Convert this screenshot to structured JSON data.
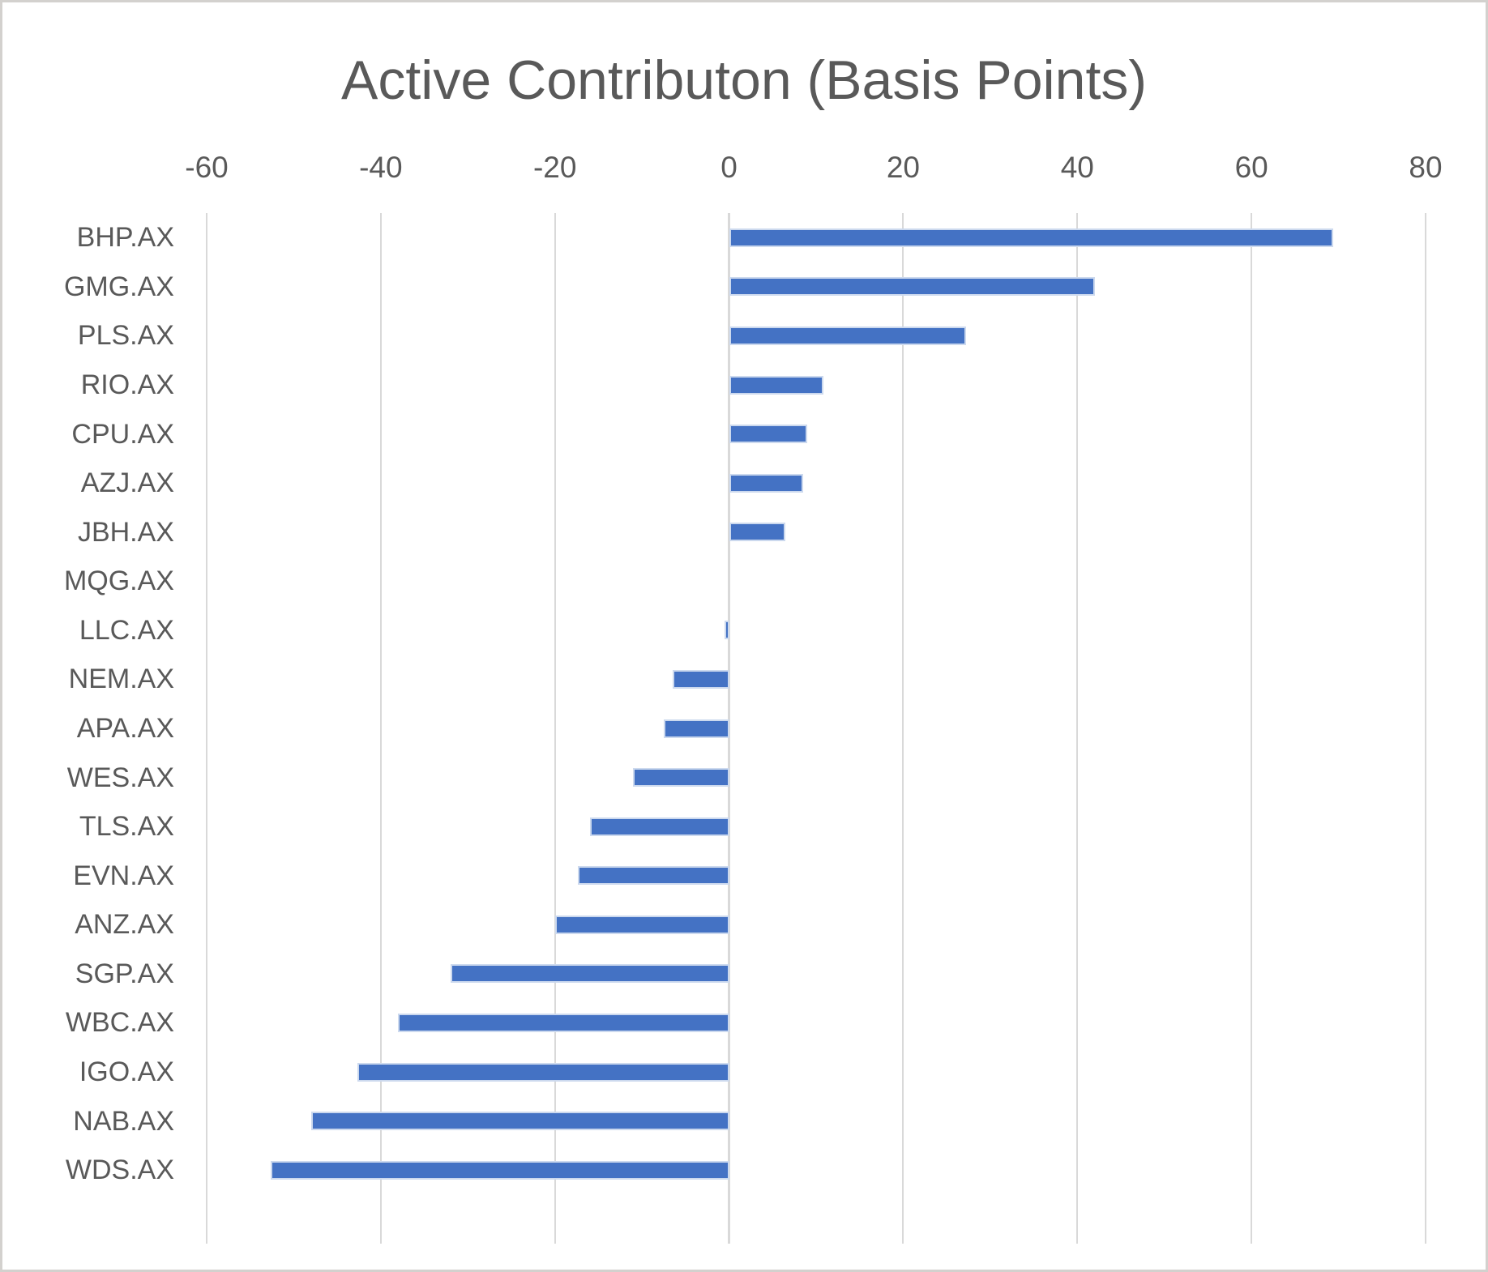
{
  "title": "Active Contributon (Basis Points)",
  "chart_data": {
    "type": "bar",
    "orientation": "horizontal",
    "title": "Active Contributon (Basis Points)",
    "xlabel": "",
    "ylabel": "",
    "xlim": [
      -60,
      80
    ],
    "x_ticks": [
      -60,
      -40,
      -20,
      0,
      20,
      40,
      60,
      80
    ],
    "grid": true,
    "legend": false,
    "categories": [
      "BHP.AX",
      "GMG.AX",
      "PLS.AX",
      "RIO.AX",
      "CPU.AX",
      "AZJ.AX",
      "JBH.AX",
      "MQG.AX",
      "LLC.AX",
      "NEM.AX",
      "APA.AX",
      "WES.AX",
      "TLS.AX",
      "EVN.AX",
      "ANZ.AX",
      "SGP.AX",
      "WBC.AX",
      "IGO.AX",
      "NAB.AX",
      "WDS.AX"
    ],
    "values": [
      69.4,
      42.0,
      27.2,
      10.8,
      9.0,
      8.5,
      6.5,
      0.0,
      -0.5,
      -6.5,
      -7.5,
      -11.0,
      -16.0,
      -17.4,
      -20.0,
      -32.0,
      -38.0,
      -42.7,
      -48.0,
      -52.6
    ]
  },
  "colors": {
    "bar": "#4472C4",
    "bar_edge": "#CCD9EE",
    "gridline": "#D9D9D9",
    "text": "#595959",
    "frame_border": "#D3D1CE",
    "background": "#FFFFFF"
  }
}
